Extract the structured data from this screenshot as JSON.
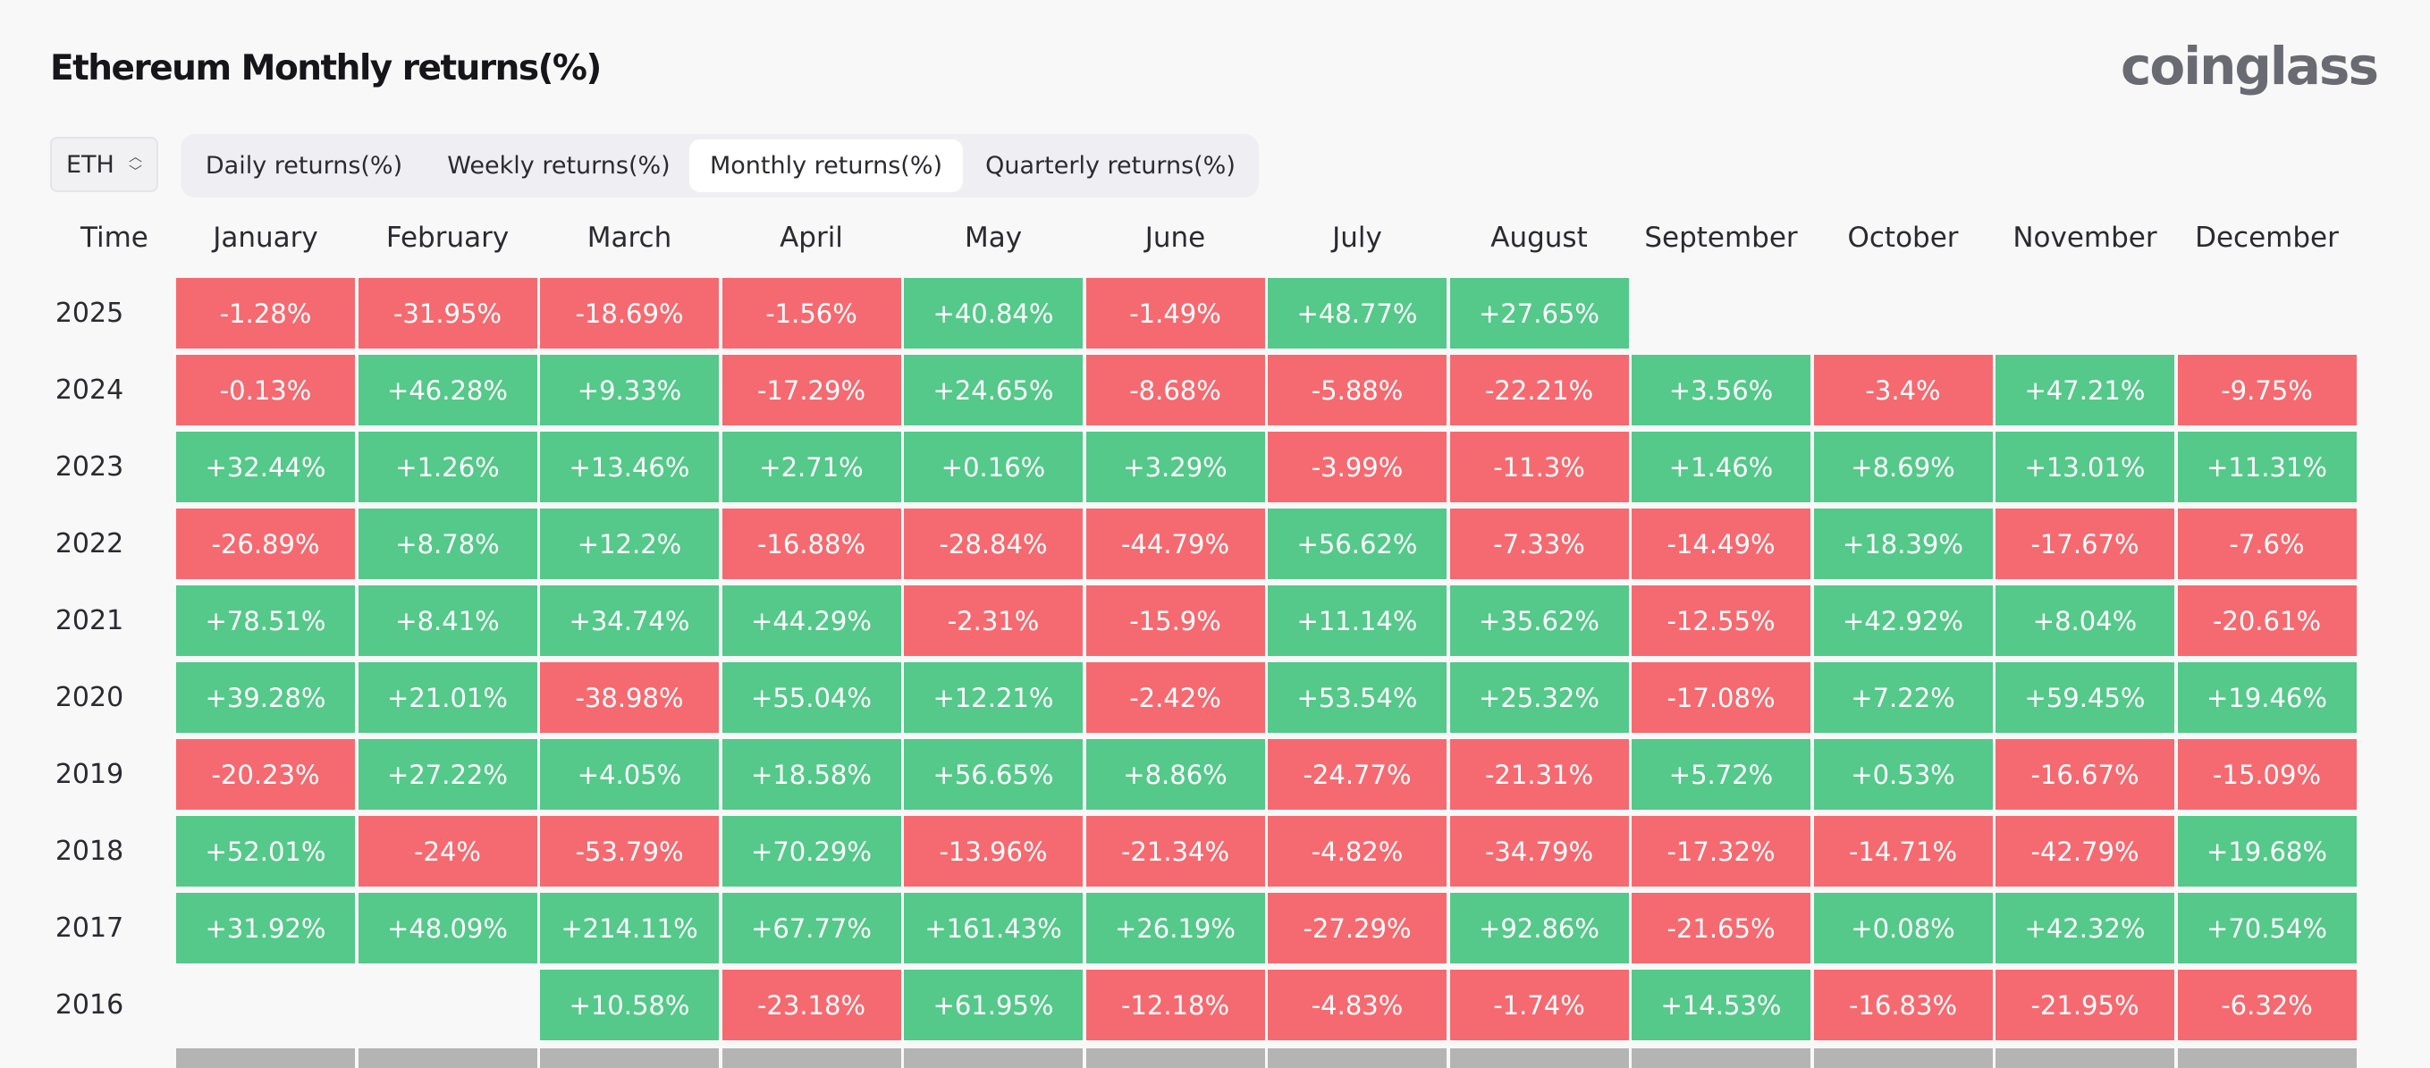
{
  "page": {
    "title": "Ethereum Monthly returns(%)",
    "logo": "coinglass"
  },
  "symbol_select": {
    "value": "ETH",
    "icon": "chevron-updown-icon"
  },
  "tabs": [
    {
      "label": "Daily returns(%)",
      "active": false
    },
    {
      "label": "Weekly returns(%)",
      "active": false
    },
    {
      "label": "Monthly returns(%)",
      "active": true
    },
    {
      "label": "Quarterly returns(%)",
      "active": false
    }
  ],
  "table": {
    "time_header": "Time",
    "months": [
      "January",
      "February",
      "March",
      "April",
      "May",
      "June",
      "July",
      "August",
      "September",
      "October",
      "November",
      "December"
    ],
    "rows": [
      {
        "year": "2025",
        "values": [
          "-1.28%",
          "-31.95%",
          "-18.69%",
          "-1.56%",
          "+40.84%",
          "-1.49%",
          "+48.77%",
          "+27.65%",
          "",
          "",
          "",
          ""
        ]
      },
      {
        "year": "2024",
        "values": [
          "-0.13%",
          "+46.28%",
          "+9.33%",
          "-17.29%",
          "+24.65%",
          "-8.68%",
          "-5.88%",
          "-22.21%",
          "+3.56%",
          "-3.4%",
          "+47.21%",
          "-9.75%"
        ]
      },
      {
        "year": "2023",
        "values": [
          "+32.44%",
          "+1.26%",
          "+13.46%",
          "+2.71%",
          "+0.16%",
          "+3.29%",
          "-3.99%",
          "-11.3%",
          "+1.46%",
          "+8.69%",
          "+13.01%",
          "+11.31%"
        ]
      },
      {
        "year": "2022",
        "values": [
          "-26.89%",
          "+8.78%",
          "+12.2%",
          "-16.88%",
          "-28.84%",
          "-44.79%",
          "+56.62%",
          "-7.33%",
          "-14.49%",
          "+18.39%",
          "-17.67%",
          "-7.6%"
        ]
      },
      {
        "year": "2021",
        "values": [
          "+78.51%",
          "+8.41%",
          "+34.74%",
          "+44.29%",
          "-2.31%",
          "-15.9%",
          "+11.14%",
          "+35.62%",
          "-12.55%",
          "+42.92%",
          "+8.04%",
          "-20.61%"
        ]
      },
      {
        "year": "2020",
        "values": [
          "+39.28%",
          "+21.01%",
          "-38.98%",
          "+55.04%",
          "+12.21%",
          "-2.42%",
          "+53.54%",
          "+25.32%",
          "-17.08%",
          "+7.22%",
          "+59.45%",
          "+19.46%"
        ]
      },
      {
        "year": "2019",
        "values": [
          "-20.23%",
          "+27.22%",
          "+4.05%",
          "+18.58%",
          "+56.65%",
          "+8.86%",
          "-24.77%",
          "-21.31%",
          "+5.72%",
          "+0.53%",
          "-16.67%",
          "-15.09%"
        ]
      },
      {
        "year": "2018",
        "values": [
          "+52.01%",
          "-24%",
          "-53.79%",
          "+70.29%",
          "-13.96%",
          "-21.34%",
          "-4.82%",
          "-34.79%",
          "-17.32%",
          "-14.71%",
          "-42.79%",
          "+19.68%"
        ]
      },
      {
        "year": "2017",
        "values": [
          "+31.92%",
          "+48.09%",
          "+214.11%",
          "+67.77%",
          "+161.43%",
          "+26.19%",
          "-27.29%",
          "+92.86%",
          "-21.65%",
          "+0.08%",
          "+42.32%",
          "+70.54%"
        ]
      },
      {
        "year": "2016",
        "values": [
          "",
          "",
          "+10.58%",
          "-23.18%",
          "+61.95%",
          "-12.18%",
          "-4.83%",
          "-1.74%",
          "+14.53%",
          "-16.83%",
          "-21.95%",
          "-6.32%"
        ]
      }
    ]
  },
  "colors": {
    "positive": "#54c98a",
    "negative": "#f56a70",
    "footer_row": "#b4b4b4"
  }
}
